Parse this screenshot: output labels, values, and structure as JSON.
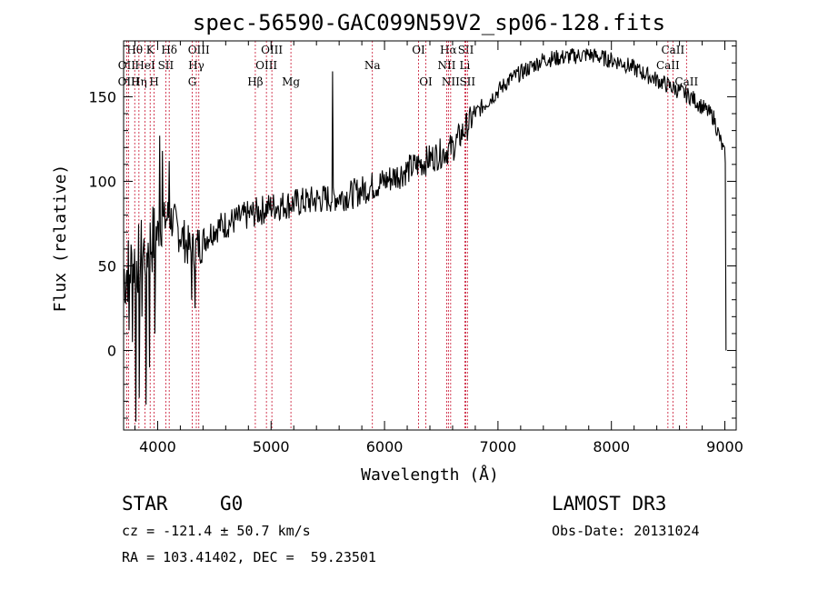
{
  "chart_data": {
    "type": "line",
    "title": "spec-56590-GAC099N59V2_sp06-128.fits",
    "xlabel": "Wavelength (Å)",
    "ylabel": "Flux (relative)",
    "xlim": [
      3700,
      9100
    ],
    "ylim": [
      -47,
      183
    ],
    "xticks": [
      4000,
      5000,
      6000,
      7000,
      8000,
      9000
    ],
    "yticks": [
      0,
      50,
      100,
      150
    ],
    "spectrum_shape": {
      "continuum_points": [
        [
          3700,
          45
        ],
        [
          3900,
          60
        ],
        [
          4100,
          80
        ],
        [
          4300,
          58
        ],
        [
          4500,
          72
        ],
        [
          4800,
          80
        ],
        [
          5000,
          85
        ],
        [
          5300,
          88
        ],
        [
          5700,
          92
        ],
        [
          6000,
          100
        ],
        [
          6300,
          110
        ],
        [
          6600,
          120
        ],
        [
          6800,
          140
        ],
        [
          7100,
          160
        ],
        [
          7400,
          172
        ],
        [
          7800,
          175
        ],
        [
          8100,
          170
        ],
        [
          8400,
          160
        ],
        [
          8700,
          150
        ],
        [
          8900,
          138
        ],
        [
          9000,
          115
        ]
      ],
      "spikes": [
        [
          3720,
          28
        ],
        [
          3750,
          12
        ],
        [
          3780,
          5
        ],
        [
          3810,
          -42
        ],
        [
          3840,
          -28
        ],
        [
          3860,
          20
        ],
        [
          3900,
          -32
        ],
        [
          3930,
          -10
        ],
        [
          3975,
          10
        ],
        [
          4020,
          127
        ],
        [
          4040,
          118
        ],
        [
          4100,
          112
        ],
        [
          4300,
          30
        ],
        [
          4330,
          25
        ],
        [
          5540,
          165
        ],
        [
          9010,
          0
        ]
      ]
    },
    "line_markers": [
      {
        "label": "Hθ",
        "wavelength": 3798,
        "row": 1
      },
      {
        "label": "OII",
        "wavelength": 3727,
        "row": 2
      },
      {
        "label": "OIII",
        "wavelength": 3745,
        "row": 3
      },
      {
        "label": "K",
        "wavelength": 3934,
        "row": 1
      },
      {
        "label": "HeI",
        "wavelength": 3889,
        "row": 2
      },
      {
        "label": "Hη",
        "wavelength": 3835,
        "row": 3
      },
      {
        "label": "SII",
        "wavelength": 4072,
        "row": 2
      },
      {
        "label": "H",
        "wavelength": 3969,
        "row": 3
      },
      {
        "label": "Hδ",
        "wavelength": 4102,
        "row": 1
      },
      {
        "label": "OIII",
        "wavelength": 4363,
        "row": 1
      },
      {
        "label": "Hγ",
        "wavelength": 4341,
        "row": 2
      },
      {
        "label": "G",
        "wavelength": 4305,
        "row": 3
      },
      {
        "label": "OIII",
        "wavelength": 5007,
        "row": 1
      },
      {
        "label": "OIII",
        "wavelength": 4959,
        "row": 2
      },
      {
        "label": "Hβ",
        "wavelength": 4861,
        "row": 3
      },
      {
        "label": "Mg",
        "wavelength": 5175,
        "row": 3
      },
      {
        "label": "Na",
        "wavelength": 5893,
        "row": 2
      },
      {
        "label": "OI",
        "wavelength": 6300,
        "row": 1
      },
      {
        "label": "OI",
        "wavelength": 6364,
        "row": 3
      },
      {
        "label": "Hα",
        "wavelength": 6563,
        "row": 1
      },
      {
        "label": "SII",
        "wavelength": 6717,
        "row": 1
      },
      {
        "label": "NII",
        "wavelength": 6548,
        "row": 2
      },
      {
        "label": "Li",
        "wavelength": 6708,
        "row": 2
      },
      {
        "label": "NII",
        "wavelength": 6583,
        "row": 3
      },
      {
        "label": "SII",
        "wavelength": 6731,
        "row": 3
      },
      {
        "label": "CaII",
        "wavelength": 8542,
        "row": 1
      },
      {
        "label": "CaII",
        "wavelength": 8498,
        "row": 2
      },
      {
        "label": "CaII",
        "wavelength": 8662,
        "row": 3
      }
    ]
  },
  "footer": {
    "object_class": "STAR",
    "subclass": "G0",
    "survey": "LAMOST DR3",
    "cz": "cz = -121.4 ± 50.7 km/s",
    "obs_date": "Obs-Date: 20131024",
    "coords": "RA = 103.41402, DEC =  59.23501"
  }
}
